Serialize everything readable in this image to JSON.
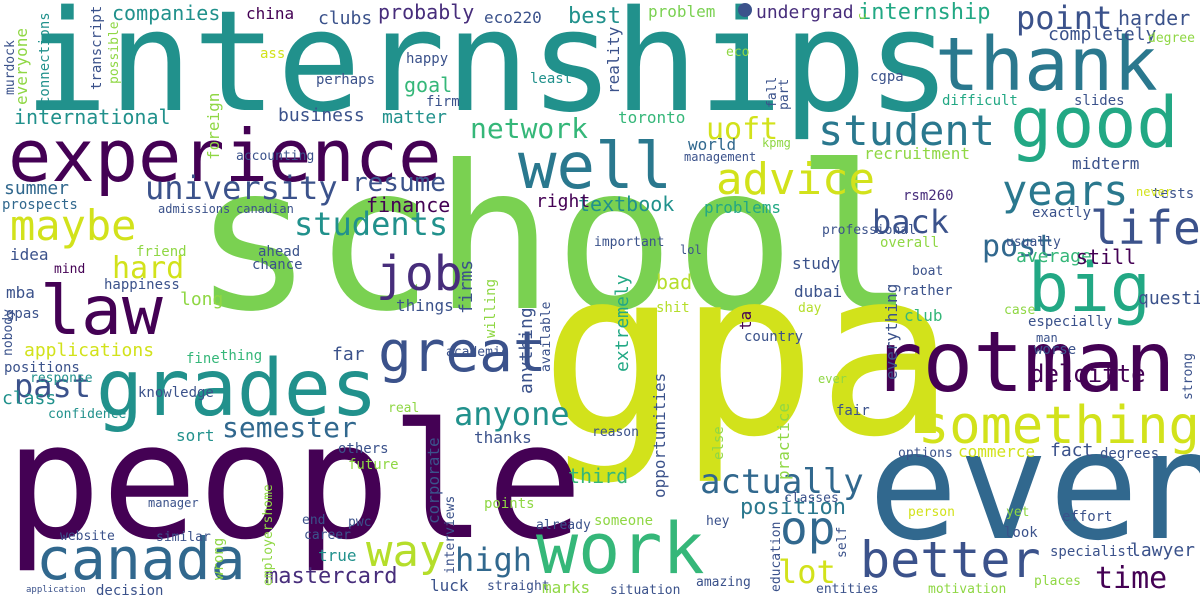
{
  "words": [
    {
      "text": "internships",
      "color": "#21918c"
    },
    {
      "text": "school",
      "color": "#7ad151"
    },
    {
      "text": "gpa",
      "color": "#d2e21b"
    },
    {
      "text": "people",
      "color": "#440154"
    },
    {
      "text": "even",
      "color": "#31688e"
    },
    {
      "text": "experience",
      "color": "#440154"
    },
    {
      "text": "thank",
      "color": "#2a788e"
    },
    {
      "text": "good",
      "color": "#22a884"
    },
    {
      "text": "rotman",
      "color": "#440154"
    },
    {
      "text": "grades",
      "color": "#21918c"
    },
    {
      "text": "law",
      "color": "#440154"
    },
    {
      "text": "work",
      "color": "#35b779"
    },
    {
      "text": "canada",
      "color": "#31688e"
    },
    {
      "text": "well",
      "color": "#2a788e"
    },
    {
      "text": "big",
      "color": "#22a884"
    },
    {
      "text": "great",
      "color": "#3b528b"
    },
    {
      "text": "something",
      "color": "#d2e21b"
    },
    {
      "text": "better",
      "color": "#3b528b"
    },
    {
      "text": "student",
      "color": "#2a788e"
    },
    {
      "text": "years",
      "color": "#2a788e"
    },
    {
      "text": "life",
      "color": "#3b528b"
    },
    {
      "text": "maybe",
      "color": "#d2e21b"
    },
    {
      "text": "advice",
      "color": "#d2e21b"
    },
    {
      "text": "job",
      "color": "#472d7b"
    },
    {
      "text": "way",
      "color": "#b5de2b"
    },
    {
      "text": "op",
      "color": "#31688e"
    },
    {
      "text": "actually",
      "color": "#31688e"
    },
    {
      "text": "past",
      "color": "#3b528b"
    },
    {
      "text": "university",
      "color": "#3b528b"
    },
    {
      "text": "students",
      "color": "#21918c"
    },
    {
      "text": "uoft",
      "color": "#d2e21b"
    },
    {
      "text": "network",
      "color": "#35b779"
    },
    {
      "text": "anyone",
      "color": "#21918c"
    },
    {
      "text": "high",
      "color": "#31688e"
    },
    {
      "text": "lot",
      "color": "#d2e21b"
    },
    {
      "text": "time",
      "color": "#440154"
    },
    {
      "text": "semester",
      "color": "#31688e"
    },
    {
      "text": "hard",
      "color": "#d2e21b"
    },
    {
      "text": "resume",
      "color": "#3b528b"
    },
    {
      "text": "back",
      "color": "#3b528b"
    },
    {
      "text": "post",
      "color": "#31688e"
    },
    {
      "text": "point",
      "color": "#3b528b"
    },
    {
      "text": "mastercard",
      "color": "#472d7b"
    },
    {
      "text": "position",
      "color": "#2a788e"
    },
    {
      "text": "deloitte",
      "color": "#440154"
    },
    {
      "text": "lawyer",
      "color": "#3b528b"
    },
    {
      "text": "companies",
      "color": "#21918c"
    },
    {
      "text": "china",
      "color": "#440154"
    },
    {
      "text": "clubs",
      "color": "#3b528b"
    },
    {
      "text": "probably",
      "color": "#472d7b"
    },
    {
      "text": "eco220",
      "color": "#3b528b"
    },
    {
      "text": "best",
      "color": "#21918c"
    },
    {
      "text": "problem",
      "color": "#7ad151"
    },
    {
      "text": "undergrad",
      "color": "#472d7b"
    },
    {
      "text": "internship",
      "color": "#22a884"
    },
    {
      "text": "harder",
      "color": "#3b528b"
    },
    {
      "text": "completely",
      "color": "#3b528b"
    },
    {
      "text": "degree",
      "color": "#8fd744"
    },
    {
      "text": "international",
      "color": "#21918c"
    },
    {
      "text": "business",
      "color": "#3b528b"
    },
    {
      "text": "matter",
      "color": "#21918c"
    },
    {
      "text": "goal",
      "color": "#35b779"
    },
    {
      "text": "happy",
      "color": "#3b528b"
    },
    {
      "text": "least",
      "color": "#21918c"
    },
    {
      "text": "firm",
      "color": "#3b528b"
    },
    {
      "text": "toronto",
      "color": "#35b779"
    },
    {
      "text": "cgpa",
      "color": "#3b528b"
    },
    {
      "text": "difficult",
      "color": "#22a884"
    },
    {
      "text": "slides",
      "color": "#3b528b"
    },
    {
      "text": "ass",
      "color": "#d2e21b"
    },
    {
      "text": "perhaps",
      "color": "#3b528b"
    },
    {
      "text": "summer",
      "color": "#31688e"
    },
    {
      "text": "prospects",
      "color": "#31688e"
    },
    {
      "text": "admissions",
      "color": "#3b528b"
    },
    {
      "text": "canadian",
      "color": "#3b528b"
    },
    {
      "text": "finance",
      "color": "#440154"
    },
    {
      "text": "textbook",
      "color": "#21918c"
    },
    {
      "text": "right",
      "color": "#440154"
    },
    {
      "text": "problems",
      "color": "#22a884"
    },
    {
      "text": "world",
      "color": "#31688e"
    },
    {
      "text": "management",
      "color": "#3b528b"
    },
    {
      "text": "recruitment",
      "color": "#8fd744"
    },
    {
      "text": "midterm",
      "color": "#3b528b"
    },
    {
      "text": "rsm260",
      "color": "#472d7b"
    },
    {
      "text": "tests",
      "color": "#3b528b"
    },
    {
      "text": "exactly",
      "color": "#3b528b"
    },
    {
      "text": "usually",
      "color": "#3b528b"
    },
    {
      "text": "average",
      "color": "#35b779"
    },
    {
      "text": "still",
      "color": "#440154"
    },
    {
      "text": "overall",
      "color": "#8fd744"
    },
    {
      "text": "idea",
      "color": "#3b528b"
    },
    {
      "text": "friend",
      "color": "#8fd744"
    },
    {
      "text": "ahead",
      "color": "#3b528b"
    },
    {
      "text": "chance",
      "color": "#3b528b"
    },
    {
      "text": "mind",
      "color": "#440154"
    },
    {
      "text": "mba",
      "color": "#3b528b"
    },
    {
      "text": "happiness",
      "color": "#3b528b"
    },
    {
      "text": "long",
      "color": "#8fd744"
    },
    {
      "text": "gpas",
      "color": "#3b528b"
    },
    {
      "text": "things",
      "color": "#3b528b"
    },
    {
      "text": "firms",
      "color": "#3b528b"
    },
    {
      "text": "extremely",
      "color": "#22a884"
    },
    {
      "text": "bad",
      "color": "#b5de2b"
    },
    {
      "text": "shit",
      "color": "#b5de2b"
    },
    {
      "text": "study",
      "color": "#3b528b"
    },
    {
      "text": "dubai",
      "color": "#3b528b"
    },
    {
      "text": "club",
      "color": "#35b779"
    },
    {
      "text": "rather",
      "color": "#3b528b"
    },
    {
      "text": "boat",
      "color": "#3b528b"
    },
    {
      "text": "day",
      "color": "#b5de2b"
    },
    {
      "text": "case",
      "color": "#8fd744"
    },
    {
      "text": "especially",
      "color": "#3b528b"
    },
    {
      "text": "applications",
      "color": "#d2e21b"
    },
    {
      "text": "far",
      "color": "#3b528b"
    },
    {
      "text": "academic",
      "color": "#3b528b"
    },
    {
      "text": "country",
      "color": "#3b528b"
    },
    {
      "text": "lol",
      "color": "#3b528b"
    },
    {
      "text": "fine",
      "color": "#35b779"
    },
    {
      "text": "thing",
      "color": "#35b779"
    },
    {
      "text": "positions",
      "color": "#3b528b"
    },
    {
      "text": "response",
      "color": "#21918c"
    },
    {
      "text": "knowledge",
      "color": "#3b528b"
    },
    {
      "text": "sort",
      "color": "#21918c"
    },
    {
      "text": "class",
      "color": "#21918c"
    },
    {
      "text": "confidence",
      "color": "#21918c"
    },
    {
      "text": "others",
      "color": "#3b528b"
    },
    {
      "text": "future",
      "color": "#8fd744"
    },
    {
      "text": "real",
      "color": "#8fd744"
    },
    {
      "text": "thanks",
      "color": "#3b528b"
    },
    {
      "text": "reason",
      "color": "#3b528b"
    },
    {
      "text": "third",
      "color": "#35b779"
    },
    {
      "text": "else",
      "color": "#8fd744"
    },
    {
      "text": "commerce",
      "color": "#d2e21b"
    },
    {
      "text": "fact",
      "color": "#3b528b"
    },
    {
      "text": "degrees",
      "color": "#3b528b"
    },
    {
      "text": "options",
      "color": "#3b528b"
    },
    {
      "text": "fair",
      "color": "#3b528b"
    },
    {
      "text": "ever",
      "color": "#8fd744"
    },
    {
      "text": "worse",
      "color": "#3b528b"
    },
    {
      "text": "man",
      "color": "#3b528b"
    },
    {
      "text": "manager",
      "color": "#3b528b"
    },
    {
      "text": "end",
      "color": "#3b528b"
    },
    {
      "text": "pwc",
      "color": "#3b528b"
    },
    {
      "text": "career",
      "color": "#3b528b"
    },
    {
      "text": "website",
      "color": "#3b528b"
    },
    {
      "text": "similar",
      "color": "#3b528b"
    },
    {
      "text": "true",
      "color": "#21918c"
    },
    {
      "text": "luck",
      "color": "#3b528b"
    },
    {
      "text": "straight",
      "color": "#3b528b"
    },
    {
      "text": "marks",
      "color": "#8fd744"
    },
    {
      "text": "situation",
      "color": "#3b528b"
    },
    {
      "text": "amazing",
      "color": "#3b528b"
    },
    {
      "text": "points",
      "color": "#8fd744"
    },
    {
      "text": "already",
      "color": "#3b528b"
    },
    {
      "text": "someone",
      "color": "#8fd744"
    },
    {
      "text": "hey",
      "color": "#3b528b"
    },
    {
      "text": "classes",
      "color": "#3b528b"
    },
    {
      "text": "entities",
      "color": "#3b528b"
    },
    {
      "text": "motivation",
      "color": "#8fd744"
    },
    {
      "text": "places",
      "color": "#8fd744"
    },
    {
      "text": "person",
      "color": "#d2e21b"
    },
    {
      "text": "yet",
      "color": "#8fd744"
    },
    {
      "text": "effort",
      "color": "#3b528b"
    },
    {
      "text": "look",
      "color": "#3b528b"
    },
    {
      "text": "specialist",
      "color": "#3b528b"
    },
    {
      "text": "decision",
      "color": "#3b528b"
    },
    {
      "text": "application",
      "color": "#3b528b"
    },
    {
      "text": "nobody",
      "color": "#3b528b"
    },
    {
      "text": "murdock",
      "color": "#3b528b"
    },
    {
      "text": "everyone",
      "color": "#8fd744"
    },
    {
      "text": "connections",
      "color": "#21918c"
    },
    {
      "text": "transcript",
      "color": "#3b528b"
    },
    {
      "text": "possible",
      "color": "#8fd744"
    },
    {
      "text": "foreign",
      "color": "#8fd744"
    },
    {
      "text": "employershome",
      "color": "#8fd744"
    },
    {
      "text": "wrong",
      "color": "#8fd744"
    },
    {
      "text": "interviews",
      "color": "#3b528b"
    },
    {
      "text": "corporate",
      "color": "#3b528b"
    },
    {
      "text": "anything",
      "color": "#3b528b"
    },
    {
      "text": "willing",
      "color": "#8fd744"
    },
    {
      "text": "available",
      "color": "#3b528b"
    },
    {
      "text": "opportunities",
      "color": "#3b528b"
    },
    {
      "text": "questions",
      "color": "#3b528b"
    },
    {
      "text": "practice",
      "color": "#8fd744"
    },
    {
      "text": "everything",
      "color": "#3b528b"
    },
    {
      "text": "accounting",
      "color": "#3b528b"
    },
    {
      "text": "kpmg",
      "color": "#8fd744"
    },
    {
      "text": "professional",
      "color": "#3b528b"
    },
    {
      "text": "ta",
      "color": "#440154"
    },
    {
      "text": "education",
      "color": "#3b528b"
    },
    {
      "text": "important",
      "color": "#3b528b"
    },
    {
      "text": "self",
      "color": "#3b528b"
    },
    {
      "text": "never",
      "color": "#d2e21b"
    },
    {
      "text": "strong",
      "color": "#3b528b"
    },
    {
      "text": "fall",
      "color": "#3b528b"
    },
    {
      "text": "part",
      "color": "#3b528b"
    },
    {
      "text": "reality",
      "color": "#3b528b"
    },
    {
      "text": "eco",
      "color": "#8fd744"
    },
    {
      "text": "c",
      "color": "#8fd744"
    }
  ]
}
